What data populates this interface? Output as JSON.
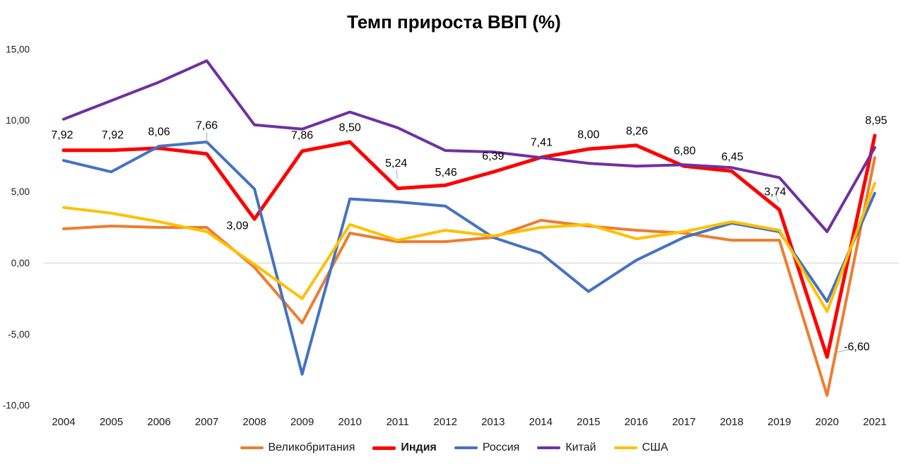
{
  "chart_data": {
    "type": "line",
    "title": "Темп прироста ВВП (%)",
    "xlabel": "",
    "ylabel": "",
    "ylim": [
      -10,
      15
    ],
    "grid": "zero-line-only",
    "legend_position": "bottom-center",
    "zero_line_color": "#D9D9D9",
    "text_color": "#1a1a1a",
    "leader_line_color": "#A6A6A6",
    "categories": [
      "2004",
      "2005",
      "2006",
      "2007",
      "2008",
      "2009",
      "2010",
      "2011",
      "2012",
      "2013",
      "2014",
      "2015",
      "2016",
      "2017",
      "2018",
      "2019",
      "2020",
      "2021"
    ],
    "y_ticks": [
      {
        "value": 15,
        "label": "15,00"
      },
      {
        "value": 10,
        "label": "10,00"
      },
      {
        "value": 5,
        "label": "5,00"
      },
      {
        "value": 0,
        "label": "0,00"
      },
      {
        "value": -5,
        "label": "-5,00"
      },
      {
        "value": -10,
        "label": "-10,00"
      }
    ],
    "series": [
      {
        "key": "uk",
        "name": "Великобритания",
        "color": "#ED7D31",
        "bold": false,
        "values": [
          2.4,
          2.6,
          2.5,
          2.5,
          -0.3,
          -4.2,
          2.1,
          1.5,
          1.5,
          1.8,
          3.0,
          2.6,
          2.3,
          2.1,
          1.6,
          1.6,
          -9.3,
          7.4
        ]
      },
      {
        "key": "india",
        "name": "Индия",
        "color": "#FF0000",
        "bold": true,
        "values": [
          7.92,
          7.92,
          8.06,
          7.66,
          3.09,
          7.86,
          8.5,
          5.24,
          5.46,
          6.39,
          7.41,
          8.0,
          8.26,
          6.8,
          6.45,
          3.74,
          -6.6,
          8.95
        ],
        "data_labels": [
          "7,92",
          "7,92",
          "8,06",
          "7,66",
          "3,09",
          "7,86",
          "8,50",
          "5,24",
          "5,46",
          "6,39",
          "7,41",
          "8,00",
          "8,26",
          "6,80",
          "6,45",
          "3,74",
          "-6,60",
          "8,95"
        ],
        "label_offsets": [
          {
            "dx": -2,
            "dy": -22,
            "leader": false
          },
          {
            "dx": 2,
            "dy": -22,
            "leader": false
          },
          {
            "dx": 0,
            "dy": -24,
            "leader": false
          },
          {
            "dx": 0,
            "dy": -41,
            "leader": true
          },
          {
            "dx": -24,
            "dy": 9,
            "leader": false
          },
          {
            "dx": 0,
            "dy": -23,
            "leader": false
          },
          {
            "dx": 0,
            "dy": -21,
            "leader": false
          },
          {
            "dx": -2,
            "dy": -36,
            "leader": true
          },
          {
            "dx": 1,
            "dy": -19,
            "leader": false
          },
          {
            "dx": 0,
            "dy": -23,
            "leader": false
          },
          {
            "dx": 1,
            "dy": -22,
            "leader": false
          },
          {
            "dx": 0,
            "dy": -21,
            "leader": false
          },
          {
            "dx": 1,
            "dy": -21,
            "leader": false
          },
          {
            "dx": 1,
            "dy": -22,
            "leader": false
          },
          {
            "dx": 1,
            "dy": -21,
            "leader": false
          },
          {
            "dx": -6,
            "dy": -26,
            "leader": true
          },
          {
            "dx": 42,
            "dy": -15,
            "leader": true
          },
          {
            "dx": 2,
            "dy": -22,
            "leader": false
          }
        ]
      },
      {
        "key": "russia",
        "name": "Россия",
        "color": "#4472C4",
        "bold": false,
        "values": [
          7.2,
          6.4,
          8.2,
          8.5,
          5.2,
          -7.8,
          4.5,
          4.3,
          4.0,
          1.8,
          0.7,
          -2.0,
          0.2,
          1.8,
          2.8,
          2.2,
          -2.7,
          4.9
        ]
      },
      {
        "key": "china",
        "name": "Китай",
        "color": "#7030A0",
        "bold": false,
        "values": [
          10.1,
          11.4,
          12.7,
          14.2,
          9.7,
          9.4,
          10.6,
          9.5,
          7.9,
          7.8,
          7.4,
          7.0,
          6.8,
          6.9,
          6.7,
          6.0,
          2.2,
          8.1
        ]
      },
      {
        "key": "usa",
        "name": "США",
        "color": "#FFC000",
        "bold": false,
        "values": [
          3.9,
          3.5,
          2.9,
          2.2,
          -0.1,
          -2.5,
          2.7,
          1.6,
          2.3,
          1.9,
          2.5,
          2.7,
          1.7,
          2.2,
          2.9,
          2.3,
          -3.4,
          5.6
        ]
      }
    ]
  }
}
